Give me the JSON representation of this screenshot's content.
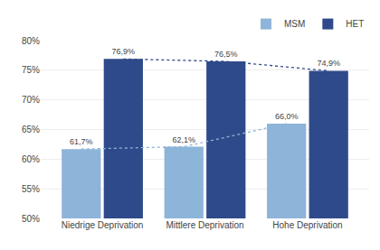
{
  "chart_data": {
    "type": "bar",
    "categories": [
      "Niedrige Deprivation",
      "Mittlere Deprivation",
      "Hohe Deprivation"
    ],
    "series": [
      {
        "name": "MSM",
        "color": "#8db4d9",
        "line_style": "dotted",
        "values": [
          61.7,
          62.1,
          66.0
        ],
        "value_labels": [
          "61,7%",
          "62,1%",
          "66,0%"
        ]
      },
      {
        "name": "HET",
        "color": "#2e4a8a",
        "line_style": "dotted",
        "values": [
          76.9,
          76.5,
          74.9
        ],
        "value_labels": [
          "76,9%",
          "76,5%",
          "74,9%"
        ]
      }
    ],
    "data_labels": true,
    "ylim": [
      50,
      80
    ],
    "yticks": [
      {
        "value": 50,
        "label": "50%"
      },
      {
        "value": 55,
        "label": "55%"
      },
      {
        "value": 60,
        "label": "60%"
      },
      {
        "value": 65,
        "label": "65%"
      },
      {
        "value": 70,
        "label": "70%"
      },
      {
        "value": 75,
        "label": "75%"
      },
      {
        "value": 80,
        "label": "80%"
      }
    ],
    "grid": true,
    "legend": "upper right"
  }
}
